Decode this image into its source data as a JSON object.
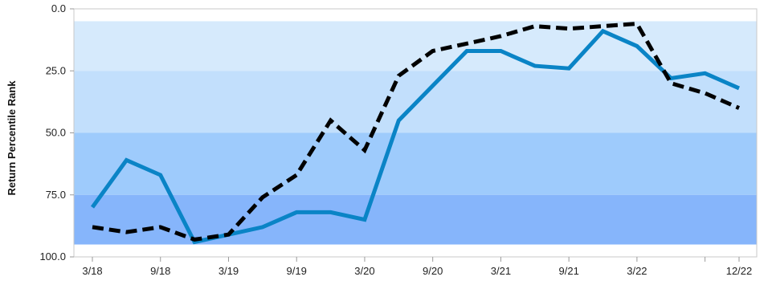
{
  "chart_data": {
    "type": "line",
    "title": "",
    "xlabel": "",
    "ylabel": "Return Percentile Rank",
    "ylim": [
      0,
      100
    ],
    "y_inverted": true,
    "y_ticks": [
      "0.0",
      "25.0",
      "50.0",
      "75.0",
      "100.0"
    ],
    "x_ticks": [
      "3/18",
      "9/18",
      "3/19",
      "9/19",
      "3/20",
      "9/20",
      "3/21",
      "9/21",
      "3/22",
      "12/22"
    ],
    "x": [
      "3/18",
      "6/18",
      "9/18",
      "12/18",
      "3/19",
      "6/19",
      "9/19",
      "12/19",
      "3/20",
      "6/20",
      "9/20",
      "12/20",
      "3/21",
      "6/21",
      "9/21",
      "12/21",
      "3/22",
      "6/22",
      "9/22",
      "12/22"
    ],
    "bands": [
      {
        "from": 5,
        "to": 25,
        "color": "#d6eafc"
      },
      {
        "from": 25,
        "to": 50,
        "color": "#c2dffc"
      },
      {
        "from": 50,
        "to": 75,
        "color": "#9ecbfc"
      },
      {
        "from": 75,
        "to": 95,
        "color": "#86b5fb"
      }
    ],
    "series": [
      {
        "style": "solid",
        "color": "#0a84c6",
        "values": [
          80,
          61,
          67,
          94,
          91,
          88,
          82,
          82,
          85,
          45,
          31,
          17,
          17,
          23,
          24,
          9,
          15,
          28,
          26,
          32
        ]
      },
      {
        "style": "dashed",
        "color": "#000000",
        "values": [
          88,
          90,
          88,
          93,
          91,
          76,
          67,
          45,
          57,
          27,
          17,
          14,
          11,
          7,
          8,
          7,
          6,
          30,
          34,
          40
        ]
      }
    ]
  }
}
